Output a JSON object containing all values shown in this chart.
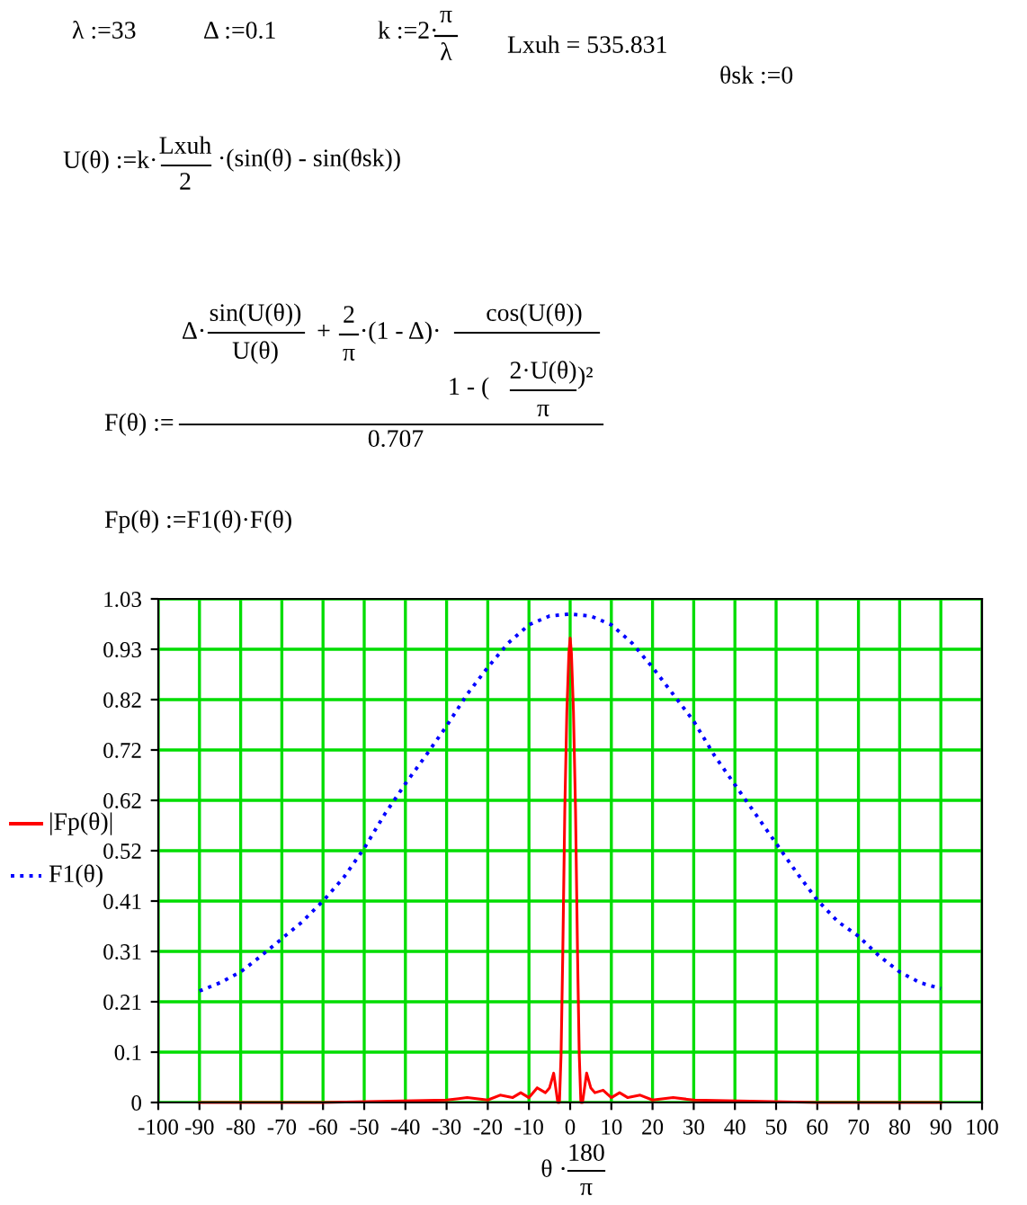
{
  "chart_data": {
    "type": "line",
    "xlabel": "θ ·",
    "annotations": [
      "λ :=33",
      "Δ :=0.1",
      "k :=2·",
      "π",
      "λ",
      "Lxuh = 535.831",
      "θsk :=0",
      "U(θ) :=k·",
      "Lxuh",
      "2",
      "·(sin(θ) - sin(θsk))",
      "Δ·",
      "sin(U(θ))",
      "U(θ)",
      "+",
      "2",
      "π",
      "·(1 - Δ)·",
      "cos(U(θ))",
      "1 - (",
      "2·U(θ)",
      "π",
      ")²",
      "F(θ) :=",
      "0.707",
      "Fp(θ) :=F1(θ)·F(θ)",
      "180",
      "π"
    ],
    "xlim": [
      -100,
      100
    ],
    "xticks": [
      -100,
      -90,
      -80,
      -70,
      -60,
      -50,
      -40,
      -30,
      -20,
      -10,
      0,
      10,
      20,
      30,
      40,
      50,
      60,
      70,
      80,
      90,
      100
    ],
    "ylim": [
      0,
      1.03
    ],
    "yticks": [
      0,
      {
        "value": 0.103,
        "label": "0.1"
      },
      {
        "value": 0.206,
        "label": "0.21"
      },
      {
        "value": 0.309,
        "label": "0.31"
      },
      {
        "value": 0.412,
        "label": "0.41"
      },
      {
        "value": 0.515,
        "label": "0.52"
      },
      {
        "value": 0.618,
        "label": "0.62"
      },
      {
        "value": 0.721,
        "label": "0.72"
      },
      {
        "value": 0.824,
        "label": "0.82"
      },
      {
        "value": 0.927,
        "label": "0.93"
      },
      1.03
    ],
    "grid": true,
    "legend": "left",
    "marker": "none",
    "series": [
      {
        "name": "|Fp(θ)|",
        "color": "#ff0000",
        "line_style": "solid",
        "x": [
          -90,
          -60,
          -30,
          -25,
          -20,
          -17,
          -14,
          -12,
          -10,
          -8,
          -6,
          -5,
          -4,
          -3,
          -2.6,
          -2.2,
          -1.8,
          -1.3,
          -0.8,
          -0.3,
          0,
          0.3,
          0.8,
          1.3,
          1.8,
          2.2,
          2.6,
          3,
          4,
          5,
          6,
          8,
          10,
          12,
          14,
          17,
          20,
          25,
          30,
          60,
          90
        ],
        "values": [
          0,
          0,
          0.005,
          0.01,
          0.005,
          0.015,
          0.01,
          0.02,
          0.01,
          0.03,
          0.02,
          0.03,
          0.06,
          0.0,
          0.0,
          0.1,
          0.3,
          0.6,
          0.8,
          0.92,
          0.95,
          0.92,
          0.8,
          0.6,
          0.3,
          0.1,
          0.0,
          0.0,
          0.06,
          0.03,
          0.02,
          0.025,
          0.01,
          0.02,
          0.01,
          0.015,
          0.005,
          0.01,
          0.005,
          0,
          0
        ]
      },
      {
        "name": "F1(θ)",
        "color": "#0000ff",
        "line_style": "dotted",
        "x": [
          -90,
          -85,
          -80,
          -75,
          -70,
          -65,
          -60,
          -55,
          -50,
          -45,
          -40,
          -35,
          -30,
          -25,
          -20,
          -15,
          -10,
          -5,
          0,
          5,
          10,
          15,
          20,
          25,
          30,
          35,
          40,
          45,
          50,
          55,
          60,
          65,
          70,
          75,
          80,
          85,
          90
        ],
        "values": [
          0.228,
          0.245,
          0.267,
          0.3,
          0.335,
          0.37,
          0.412,
          0.46,
          0.52,
          0.59,
          0.652,
          0.71,
          0.77,
          0.835,
          0.89,
          0.94,
          0.977,
          0.995,
          0.999,
          0.995,
          0.977,
          0.94,
          0.89,
          0.835,
          0.78,
          0.71,
          0.65,
          0.59,
          0.53,
          0.47,
          0.414,
          0.37,
          0.34,
          0.3,
          0.267,
          0.245,
          0.233
        ]
      }
    ]
  }
}
